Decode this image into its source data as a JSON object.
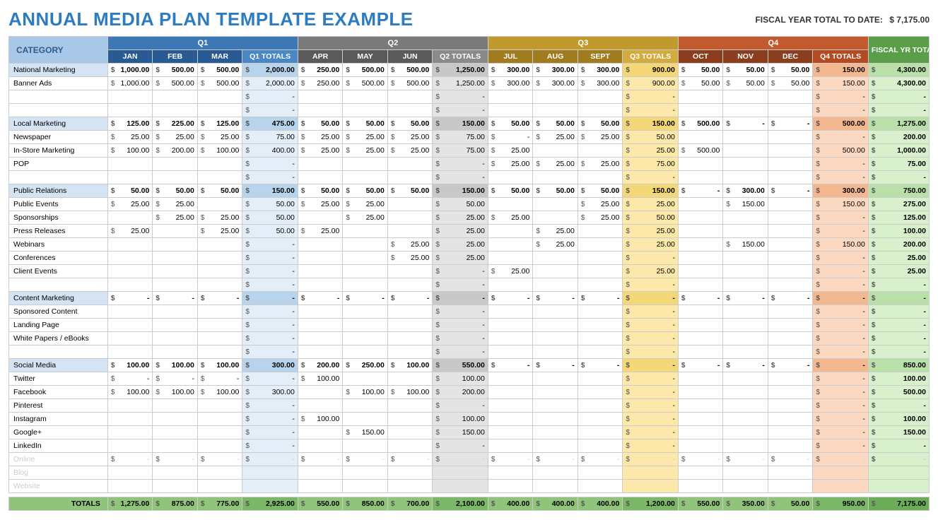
{
  "title": "ANNUAL MEDIA PLAN TEMPLATE EXAMPLE",
  "fytd_label": "FISCAL YEAR TOTAL TO DATE:",
  "fytd_value": "$  7,175.00",
  "category_label": "CATEGORY",
  "fy_label": "FISCAL YR TOTALS",
  "totals_label": "TOTALS",
  "quarters": [
    {
      "label": "Q1",
      "months": [
        "JAN",
        "FEB",
        "MAR"
      ],
      "tot": "Q1 TOTALS"
    },
    {
      "label": "Q2",
      "months": [
        "APR",
        "MAY",
        "JUN"
      ],
      "tot": "Q2 TOTALS"
    },
    {
      "label": "Q3",
      "months": [
        "JUL",
        "AUG",
        "SEPT"
      ],
      "tot": "Q3 TOTALS"
    },
    {
      "label": "Q4",
      "months": [
        "OCT",
        "NOV",
        "DEC"
      ],
      "tot": "Q4 TOTALS"
    }
  ],
  "colors": {
    "title": "#2e7cc0",
    "cat_hdr_bg": "#a9c7e8",
    "cat_hdr_fg": "#2e5c8a",
    "q1h": "#3d77b6",
    "q1m": "#2a5a94",
    "q1t": "#4a87c5",
    "q1tc": "#e4eef8",
    "q1tcs": "#b8d4ec",
    "q2h": "#7a7a7a",
    "q2m": "#5a5a5a",
    "q2t": "#8a8a8a",
    "q2tc": "#e4e4e4",
    "q2tcs": "#c8c8c8",
    "q3h": "#c19a2e",
    "q3m": "#a07c1e",
    "q3t": "#d4ab3e",
    "q3tc": "#fce8a8",
    "q3tcs": "#f4d878",
    "q4h": "#c15a2e",
    "q4m": "#8a3e1e",
    "q4t": "#b54a20",
    "q4tc": "#fcd8c0",
    "q4tcs": "#f4b890",
    "fyh": "#5a9e4a",
    "fyc": "#d8f0cc",
    "fycs": "#b8e0a8",
    "totals_bg": "#8fc47a",
    "totals_tc": "#7ab868",
    "totals_fy": "#6aac58",
    "border": "#cccccc"
  },
  "rows": [
    {
      "t": "sec",
      "label": "National Marketing",
      "c": [
        "1,000.00",
        "500.00",
        "500.00",
        "2,000.00",
        "250.00",
        "500.00",
        "500.00",
        "1,250.00",
        "300.00",
        "300.00",
        "300.00",
        "900.00",
        "50.00",
        "50.00",
        "50.00",
        "150.00",
        "4,300.00"
      ]
    },
    {
      "t": "",
      "label": "Banner Ads",
      "c": [
        "1,000.00",
        "500.00",
        "500.00",
        "2,000.00",
        "250.00",
        "500.00",
        "500.00",
        "1,250.00",
        "300.00",
        "300.00",
        "300.00",
        "900.00",
        "50.00",
        "50.00",
        "50.00",
        "150.00",
        "4,300.00"
      ]
    },
    {
      "t": "",
      "label": "",
      "c": [
        "",
        "",
        "",
        "-",
        "",
        "",
        "",
        "-",
        "",
        "",
        "",
        "-",
        "",
        "",
        "",
        "-",
        "-"
      ]
    },
    {
      "t": "",
      "label": "",
      "c": [
        "",
        "",
        "",
        "-",
        "",
        "",
        "",
        "-",
        "",
        "",
        "",
        "-",
        "",
        "",
        "",
        "-",
        "-"
      ]
    },
    {
      "t": "sec",
      "label": "Local Marketing",
      "c": [
        "125.00",
        "225.00",
        "125.00",
        "475.00",
        "50.00",
        "50.00",
        "50.00",
        "150.00",
        "50.00",
        "50.00",
        "50.00",
        "150.00",
        "500.00",
        "-",
        "-",
        "500.00",
        "1,275.00"
      ]
    },
    {
      "t": "",
      "label": "Newspaper",
      "c": [
        "25.00",
        "25.00",
        "25.00",
        "75.00",
        "25.00",
        "25.00",
        "25.00",
        "75.00",
        "-",
        "25.00",
        "25.00",
        "50.00",
        "",
        "",
        "",
        "-",
        "200.00"
      ]
    },
    {
      "t": "",
      "label": "In-Store Marketing",
      "c": [
        "100.00",
        "200.00",
        "100.00",
        "400.00",
        "25.00",
        "25.00",
        "25.00",
        "75.00",
        "25.00",
        "",
        "",
        "25.00",
        "500.00",
        "",
        "",
        "500.00",
        "1,000.00"
      ]
    },
    {
      "t": "",
      "label": "POP",
      "c": [
        "",
        "",
        "",
        "-",
        "",
        "",
        "",
        "-",
        "25.00",
        "25.00",
        "25.00",
        "75.00",
        "",
        "",
        "",
        "-",
        "75.00"
      ]
    },
    {
      "t": "",
      "label": "",
      "c": [
        "",
        "",
        "",
        "-",
        "",
        "",
        "",
        "-",
        "",
        "",
        "",
        "-",
        "",
        "",
        "",
        "-",
        "-"
      ]
    },
    {
      "t": "sec",
      "label": "Public Relations",
      "c": [
        "50.00",
        "50.00",
        "50.00",
        "150.00",
        "50.00",
        "50.00",
        "50.00",
        "150.00",
        "50.00",
        "50.00",
        "50.00",
        "150.00",
        "-",
        "300.00",
        "-",
        "300.00",
        "750.00"
      ]
    },
    {
      "t": "",
      "label": "Public Events",
      "c": [
        "25.00",
        "25.00",
        "",
        "50.00",
        "25.00",
        "25.00",
        "",
        "50.00",
        "",
        "",
        "25.00",
        "25.00",
        "",
        "150.00",
        "",
        "150.00",
        "275.00"
      ]
    },
    {
      "t": "",
      "label": "Sponsorships",
      "c": [
        "",
        "25.00",
        "25.00",
        "50.00",
        "",
        "25.00",
        "",
        "25.00",
        "25.00",
        "",
        "25.00",
        "50.00",
        "",
        "",
        "",
        "-",
        "125.00"
      ]
    },
    {
      "t": "",
      "label": "Press Releases",
      "c": [
        "25.00",
        "",
        "25.00",
        "50.00",
        "25.00",
        "",
        "",
        "25.00",
        "",
        "25.00",
        "",
        "25.00",
        "",
        "",
        "",
        "-",
        "100.00"
      ]
    },
    {
      "t": "",
      "label": "Webinars",
      "c": [
        "",
        "",
        "",
        "-",
        "",
        "",
        "25.00",
        "25.00",
        "",
        "25.00",
        "",
        "25.00",
        "",
        "150.00",
        "",
        "150.00",
        "200.00"
      ]
    },
    {
      "t": "",
      "label": "Conferences",
      "c": [
        "",
        "",
        "",
        "-",
        "",
        "",
        "25.00",
        "25.00",
        "",
        "",
        "",
        "-",
        "",
        "",
        "",
        "-",
        "25.00"
      ]
    },
    {
      "t": "",
      "label": "Client Events",
      "c": [
        "",
        "",
        "",
        "-",
        "",
        "",
        "",
        "-",
        "25.00",
        "",
        "",
        "25.00",
        "",
        "",
        "",
        "-",
        "25.00"
      ]
    },
    {
      "t": "",
      "label": "",
      "c": [
        "",
        "",
        "",
        "-",
        "",
        "",
        "",
        "-",
        "",
        "",
        "",
        "-",
        "",
        "",
        "",
        "-",
        "-"
      ]
    },
    {
      "t": "sec",
      "label": "Content Marketing",
      "c": [
        "-",
        "-",
        "-",
        "-",
        "-",
        "-",
        "-",
        "-",
        "-",
        "-",
        "-",
        "-",
        "-",
        "-",
        "-",
        "-",
        "-"
      ]
    },
    {
      "t": "",
      "label": "Sponsored Content",
      "c": [
        "",
        "",
        "",
        "-",
        "",
        "",
        "",
        "-",
        "",
        "",
        "",
        "-",
        "",
        "",
        "",
        "-",
        "-"
      ]
    },
    {
      "t": "",
      "label": "Landing Page",
      "c": [
        "",
        "",
        "",
        "-",
        "",
        "",
        "",
        "-",
        "",
        "",
        "",
        "-",
        "",
        "",
        "",
        "-",
        "-"
      ]
    },
    {
      "t": "",
      "label": "White Papers / eBooks",
      "c": [
        "",
        "",
        "",
        "-",
        "",
        "",
        "",
        "-",
        "",
        "",
        "",
        "-",
        "",
        "",
        "",
        "-",
        "-"
      ]
    },
    {
      "t": "",
      "label": "",
      "c": [
        "",
        "",
        "",
        "-",
        "",
        "",
        "",
        "-",
        "",
        "",
        "",
        "-",
        "",
        "",
        "",
        "-",
        "-"
      ]
    },
    {
      "t": "sec",
      "label": "Social Media",
      "c": [
        "100.00",
        "100.00",
        "100.00",
        "300.00",
        "200.00",
        "250.00",
        "100.00",
        "550.00",
        "-",
        "-",
        "-",
        "-",
        "-",
        "-",
        "-",
        "-",
        "850.00"
      ]
    },
    {
      "t": "",
      "label": "Twitter",
      "c": [
        "-",
        "-",
        "-",
        "-",
        "100.00",
        "",
        "",
        "100.00",
        "",
        "",
        "",
        "-",
        "",
        "",
        "",
        "-",
        "100.00"
      ]
    },
    {
      "t": "",
      "label": "Facebook",
      "c": [
        "100.00",
        "100.00",
        "100.00",
        "300.00",
        "",
        "100.00",
        "100.00",
        "200.00",
        "",
        "",
        "",
        "-",
        "",
        "",
        "",
        "-",
        "500.00"
      ]
    },
    {
      "t": "",
      "label": "Pinterest",
      "c": [
        "",
        "",
        "",
        "-",
        "",
        "",
        "",
        "-",
        "",
        "",
        "",
        "-",
        "",
        "",
        "",
        "-",
        "-"
      ]
    },
    {
      "t": "",
      "label": "Instagram",
      "c": [
        "",
        "",
        "",
        "-",
        "100.00",
        "",
        "",
        "100.00",
        "",
        "",
        "",
        "-",
        "",
        "",
        "",
        "-",
        "100.00"
      ]
    },
    {
      "t": "",
      "label": "Google+",
      "c": [
        "",
        "",
        "",
        "-",
        "",
        "150.00",
        "",
        "150.00",
        "",
        "",
        "",
        "-",
        "",
        "",
        "",
        "-",
        "150.00"
      ]
    },
    {
      "t": "",
      "label": "LinkedIn",
      "c": [
        "",
        "",
        "",
        "-",
        "",
        "",
        "",
        "-",
        "",
        "",
        "",
        "-",
        "",
        "",
        "",
        "-",
        "-"
      ]
    },
    {
      "t": "fade",
      "label": "Online",
      "c": [
        "-",
        "-",
        "-",
        "-",
        "-",
        "-",
        "-",
        "-",
        "-",
        "-",
        "-",
        "-",
        "-",
        "-",
        "-",
        "-",
        "-"
      ]
    },
    {
      "t": "fade",
      "label": "Blog",
      "c": [
        "",
        "",
        "",
        "",
        "",
        "",
        "",
        "",
        "",
        "",
        "",
        "",
        "",
        "",
        "",
        "",
        ""
      ]
    },
    {
      "t": "fade",
      "label": "Website",
      "c": [
        "",
        "",
        "",
        "",
        "",
        "",
        "",
        "",
        "",
        "",
        "",
        "",
        "",
        "",
        "",
        "",
        ""
      ]
    }
  ],
  "totals": [
    "1,275.00",
    "875.00",
    "775.00",
    "2,925.00",
    "550.00",
    "850.00",
    "700.00",
    "2,100.00",
    "400.00",
    "400.00",
    "400.00",
    "1,200.00",
    "550.00",
    "350.00",
    "50.00",
    "950.00",
    "7,175.00"
  ]
}
